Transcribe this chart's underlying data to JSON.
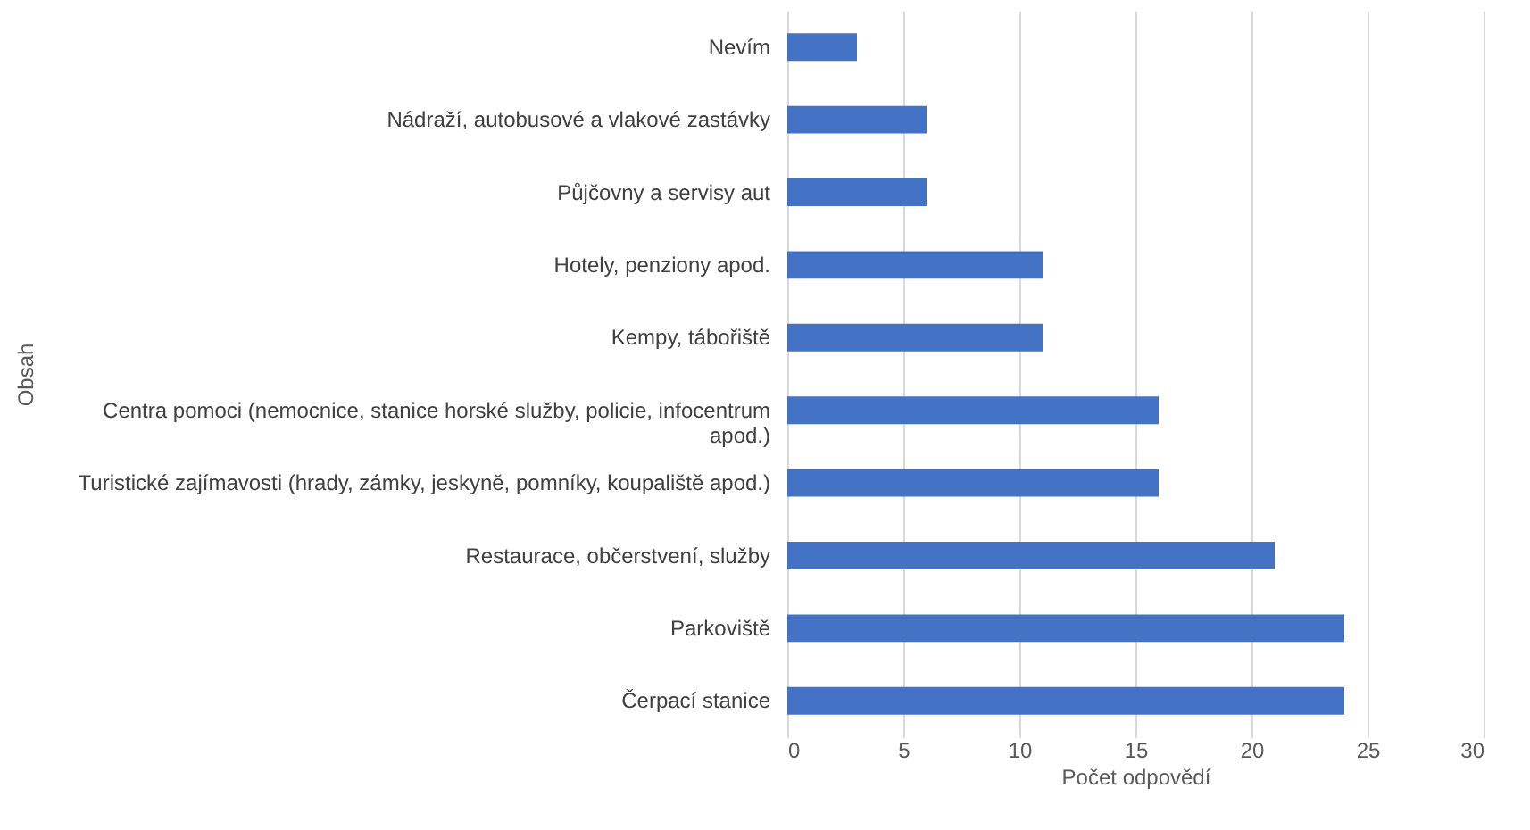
{
  "chart_data": {
    "type": "bar",
    "orientation": "horizontal",
    "xlabel": "Počet odpovědí",
    "ylabel": "Obsah",
    "categories": [
      "Nevím",
      "Nádraží, autobusové a vlakové zastávky",
      "Půjčovny a servisy aut",
      "Hotely, penziony apod.",
      "Kempy, tábořiště",
      "Centra pomoci (nemocnice, stanice horské služby, policie, infocentrum apod.)",
      "Turistické zajímavosti (hrady, zámky, jeskyně, pomníky, koupaliště apod.)",
      "Restaurace, občerstvení, služby",
      "Parkoviště",
      "Čerpací stanice"
    ],
    "values": [
      3,
      6,
      6,
      11,
      11,
      16,
      16,
      21,
      24,
      24
    ],
    "color": "#4472c4",
    "xlim": [
      0,
      30
    ],
    "xticks": [
      0,
      5,
      10,
      15,
      20,
      25,
      30
    ],
    "grid": "x"
  }
}
